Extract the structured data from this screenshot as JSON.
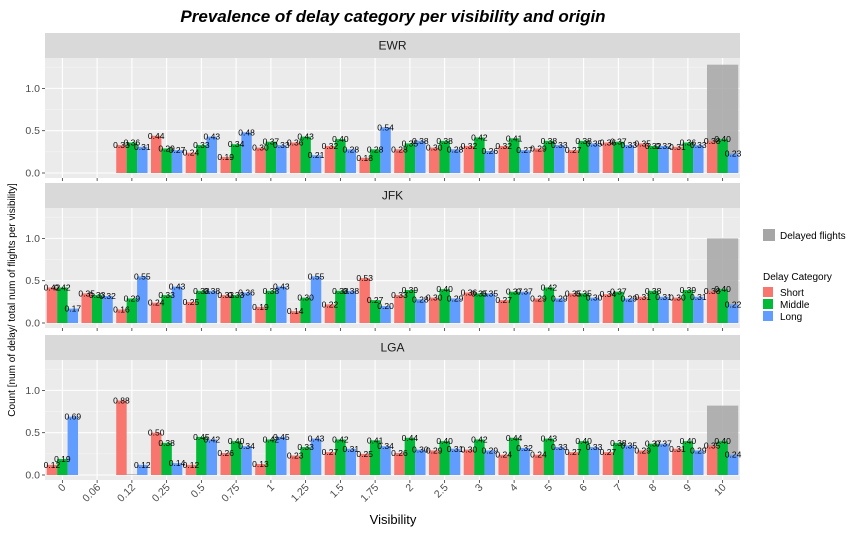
{
  "chart_data": {
    "type": "bar",
    "title": "Prevalence of delay category per visibility and origin",
    "xlabel": "Visibility",
    "ylabel": "Count [num of delay/ total num of flights per visibility]",
    "categories": [
      "0",
      "0.06",
      "0.12",
      "0.25",
      "0.5",
      "0.75",
      "1",
      "1.25",
      "1.5",
      "1.75",
      "2",
      "2.5",
      "3",
      "4",
      "5",
      "6",
      "7",
      "8",
      "9",
      "10"
    ],
    "ylim": [
      0,
      1.3
    ],
    "yticks": [
      "0.0",
      "0.5",
      "1.0"
    ],
    "legend": {
      "fill_entry": "Delayed flights",
      "title": "Delay Category",
      "entries": [
        "Short",
        "Middle",
        "Long"
      ],
      "placement": "right"
    },
    "colors": {
      "Short": "#F8766D",
      "Middle": "#00BA38",
      "Long": "#619CFF",
      "delayed": "#a6a6a6",
      "panel": "#ebebeb",
      "strip": "#d9d9d9",
      "grid": "#ffffff"
    },
    "facets": [
      {
        "name": "EWR",
        "delayed": [
          null,
          null,
          0.01,
          0.01,
          0.01,
          0.01,
          0.01,
          0.01,
          0.01,
          0.01,
          0.01,
          0.01,
          0.01,
          0.01,
          0.01,
          0.03,
          0.02,
          0.03,
          0.02,
          1.28
        ],
        "series": [
          {
            "name": "Short",
            "values": [
              null,
              null,
              0.33,
              0.44,
              0.24,
              0.19,
              0.3,
              0.36,
              0.32,
              0.18,
              0.28,
              0.3,
              0.32,
              0.32,
              0.29,
              0.27,
              0.36,
              0.35,
              0.31,
              0.38
            ]
          },
          {
            "name": "Middle",
            "values": [
              null,
              null,
              0.36,
              0.29,
              0.33,
              0.34,
              0.37,
              0.43,
              0.4,
              0.28,
              0.35,
              0.38,
              0.42,
              0.41,
              0.38,
              0.38,
              0.37,
              0.32,
              0.36,
              0.4
            ]
          },
          {
            "name": "Long",
            "values": [
              null,
              null,
              0.31,
              0.27,
              0.43,
              0.48,
              0.33,
              0.21,
              0.28,
              0.54,
              0.38,
              0.28,
              0.26,
              0.27,
              0.33,
              0.35,
              0.33,
              0.32,
              0.33,
              0.23
            ]
          }
        ],
        "labels": {
          "Short": [
            null,
            null,
            "0.33",
            "0.44",
            "0.24",
            "0.19",
            "0.30",
            "0.36",
            "0.32",
            "0.18",
            "0.28",
            "0.30",
            "0.32",
            "0.32",
            "0.29",
            "0.27",
            "0.36",
            "0.35",
            "0.31",
            "0.38"
          ],
          "Middle": [
            null,
            null,
            "0.36",
            "0.29",
            "0.33",
            "0.34",
            "0.37",
            "0.43",
            "0.40",
            "0.28",
            "0.35",
            "0.38",
            "0.42",
            "0.41",
            "0.38",
            "0.38",
            "0.37",
            "0.32",
            "0.36",
            "0.40"
          ],
          "Long": [
            null,
            null,
            "0.31",
            "0.27",
            "0.43",
            "0.48",
            "0.33",
            "0.21",
            "0.28",
            "0.54",
            "0.38",
            "0.28",
            "0.26",
            "0.27",
            "0.33",
            "0.35",
            "0.33",
            "0.32",
            "0.33",
            "0.23"
          ]
        }
      },
      {
        "name": "JFK",
        "delayed": [
          0.01,
          0.01,
          0.01,
          0.01,
          0.01,
          0.01,
          0.01,
          0.01,
          0.01,
          0.01,
          0.01,
          0.01,
          0.01,
          0.01,
          0.01,
          0.02,
          0.02,
          0.04,
          0.02,
          1.0
        ],
        "series": [
          {
            "name": "Short",
            "values": [
              0.42,
              0.35,
              0.16,
              0.24,
              0.25,
              0.33,
              0.19,
              0.14,
              0.22,
              0.53,
              0.33,
              0.3,
              0.36,
              0.27,
              0.29,
              0.35,
              0.34,
              0.31,
              0.3,
              0.38
            ]
          },
          {
            "name": "Middle",
            "values": [
              0.42,
              0.33,
              0.29,
              0.33,
              0.38,
              0.33,
              0.38,
              0.3,
              0.38,
              0.27,
              0.39,
              0.4,
              0.35,
              0.37,
              0.42,
              0.35,
              0.37,
              0.38,
              0.39,
              0.4
            ]
          },
          {
            "name": "Long",
            "values": [
              0.17,
              0.32,
              0.55,
              0.43,
              0.38,
              0.36,
              0.43,
              0.55,
              0.38,
              0.2,
              0.28,
              0.29,
              0.35,
              0.37,
              0.29,
              0.3,
              0.29,
              0.31,
              0.31,
              0.22
            ]
          }
        ],
        "labels": {
          "Short": [
            "0.42",
            "0.35",
            "0.16",
            "0.24",
            "0.25",
            "0.33",
            "0.19",
            "0.14",
            "0.22",
            "0.53",
            "0.33",
            "0.30",
            "0.36",
            "0.27",
            "0.29",
            "0.35",
            "0.34",
            "0.31",
            "0.30",
            "0.38"
          ],
          "Middle": [
            "0.42",
            "0.33",
            "0.29",
            "0.33",
            "0.38",
            "0.33",
            "0.38",
            "0.30",
            "0.38",
            "0.27",
            "0.39",
            "0.40",
            "0.35",
            "0.37",
            "0.42",
            "0.35",
            "0.37",
            "0.38",
            "0.39",
            "0.40"
          ],
          "Long": [
            "0.17",
            "0.32",
            "0.55",
            "0.43",
            "0.38",
            "0.36",
            "0.43",
            "0.55",
            "0.38",
            "0.20",
            "0.28",
            "0.29",
            "0.35",
            "0.37",
            "0.29",
            "0.30",
            "0.29",
            "0.31",
            "0.31",
            "0.22"
          ]
        }
      },
      {
        "name": "LGA",
        "delayed": [
          0.01,
          null,
          0.01,
          0.01,
          0.01,
          0.01,
          0.01,
          0.01,
          0.01,
          0.01,
          0.01,
          0.01,
          0.01,
          0.01,
          0.01,
          0.02,
          0.02,
          0.03,
          0.02,
          0.82
        ],
        "series": [
          {
            "name": "Short",
            "values": [
              0.12,
              null,
              0.88,
              0.5,
              0.12,
              0.26,
              0.13,
              0.23,
              0.27,
              0.25,
              0.26,
              0.29,
              0.3,
              0.24,
              0.24,
              0.27,
              0.27,
              0.29,
              0.31,
              0.35
            ]
          },
          {
            "name": "Middle",
            "values": [
              0.19,
              null,
              null,
              0.38,
              0.45,
              0.4,
              0.42,
              0.33,
              0.42,
              0.41,
              0.44,
              0.4,
              0.42,
              0.44,
              0.43,
              0.4,
              0.38,
              0.37,
              0.4,
              0.4
            ]
          },
          {
            "name": "Long",
            "values": [
              0.69,
              null,
              0.12,
              0.14,
              0.42,
              0.34,
              0.45,
              0.43,
              0.31,
              0.34,
              0.3,
              0.31,
              0.29,
              0.32,
              0.33,
              0.33,
              0.35,
              0.37,
              0.29,
              0.24
            ]
          }
        ],
        "labels": {
          "Short": [
            "0.12",
            null,
            "0.88",
            "0.50",
            "0.12",
            "0.26",
            "0.13",
            "0.23",
            "0.27",
            "0.25",
            "0.26",
            "0.29",
            "0.30",
            "0.24",
            "0.24",
            "0.27",
            "0.27",
            "0.29",
            "0.31",
            "0.35"
          ],
          "Middle": [
            "0.19",
            null,
            null,
            "0.38",
            "0.45",
            "0.40",
            "0.42",
            "0.33",
            "0.42",
            "0.41",
            "0.44",
            "0.40",
            "0.42",
            "0.44",
            "0.43",
            "0.40",
            "0.38",
            "0.37",
            "0.40",
            "0.40"
          ],
          "Long": [
            "0.69",
            null,
            "0.12",
            "0.14",
            "0.42",
            "0.34",
            "0.45",
            "0.43",
            "0.31",
            "0.34",
            "0.30",
            "0.31",
            "0.29",
            "0.32",
            "0.33",
            "0.33",
            "0.35",
            "0.37",
            "0.29",
            "0.24"
          ]
        }
      }
    ]
  }
}
